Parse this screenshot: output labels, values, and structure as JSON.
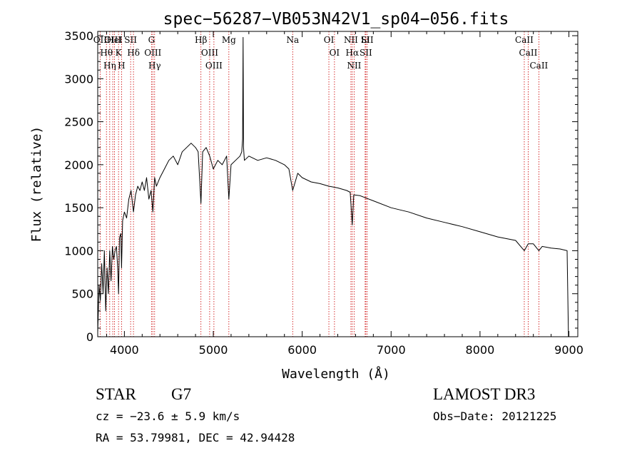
{
  "chart_data": {
    "type": "line",
    "title": "spec−56287−VB053N42V1_sp04−056.fits",
    "xlabel": "Wavelength (Å)",
    "ylabel": "Flux (relative)",
    "xlim": [
      3700,
      9100
    ],
    "ylim": [
      0,
      3550
    ],
    "x_ticks": [
      4000,
      5000,
      6000,
      7000,
      8000,
      9000
    ],
    "y_ticks": [
      0,
      500,
      1000,
      1500,
      2000,
      2500,
      3000,
      3500
    ],
    "grid": false,
    "series": [
      {
        "name": "spectrum",
        "x": [
          3700,
          3715,
          3730,
          3745,
          3760,
          3775,
          3790,
          3805,
          3820,
          3835,
          3850,
          3865,
          3880,
          3895,
          3910,
          3925,
          3934,
          3945,
          3960,
          3968,
          3980,
          4000,
          4025,
          4050,
          4075,
          4102,
          4125,
          4150,
          4175,
          4200,
          4225,
          4250,
          4275,
          4300,
          4320,
          4340,
          4360,
          4380,
          4400,
          4450,
          4500,
          4550,
          4600,
          4650,
          4700,
          4750,
          4800,
          4830,
          4861,
          4880,
          4920,
          4960,
          5000,
          5050,
          5100,
          5150,
          5175,
          5200,
          5250,
          5300,
          5320,
          5330,
          5335,
          5340,
          5350,
          5400,
          5500,
          5600,
          5700,
          5800,
          5850,
          5893,
          5950,
          6000,
          6100,
          6200,
          6300,
          6400,
          6500,
          6540,
          6563,
          6580,
          6650,
          6700,
          6800,
          7000,
          7200,
          7400,
          7600,
          7800,
          8000,
          8200,
          8400,
          8498,
          8542,
          8600,
          8662,
          8700,
          8800,
          8900,
          8980,
          8995
        ],
        "y": [
          50,
          600,
          420,
          850,
          500,
          1000,
          300,
          800,
          500,
          1000,
          650,
          1050,
          900,
          1000,
          1050,
          800,
          500,
          1150,
          1200,
          800,
          1350,
          1450,
          1380,
          1600,
          1700,
          1450,
          1650,
          1750,
          1700,
          1800,
          1700,
          1850,
          1600,
          1700,
          1450,
          1850,
          1750,
          1800,
          1850,
          1950,
          2050,
          2100,
          2000,
          2150,
          2200,
          2250,
          2200,
          2150,
          1550,
          2150,
          2200,
          2100,
          1950,
          2050,
          2000,
          2100,
          1600,
          2000,
          2050,
          2100,
          2150,
          2300,
          3480,
          2200,
          2050,
          2100,
          2050,
          2080,
          2050,
          2000,
          1950,
          1700,
          1900,
          1850,
          1800,
          1780,
          1750,
          1730,
          1700,
          1680,
          1300,
          1650,
          1640,
          1620,
          1580,
          1500,
          1450,
          1380,
          1330,
          1280,
          1220,
          1160,
          1120,
          1000,
          1080,
          1080,
          1000,
          1050,
          1030,
          1020,
          1000,
          0
        ]
      }
    ],
    "lines": [
      {
        "name": "Hθ",
        "x": 3798
      },
      {
        "name": "OII",
        "x": 3727
      },
      {
        "name": "OIII",
        "x": 3869
      },
      {
        "name": "Hη",
        "x": 3835
      },
      {
        "name": "HeI",
        "x": 3889
      },
      {
        "name": "K",
        "x": 3934
      },
      {
        "name": "H",
        "x": 3968
      },
      {
        "name": "SII",
        "x": 4070
      },
      {
        "name": "Hδ",
        "x": 4102
      },
      {
        "name": "OIII",
        "x": 4320
      },
      {
        "name": "Hγ",
        "x": 4340
      },
      {
        "name": "G",
        "x": 4305
      },
      {
        "name": "Hβ",
        "x": 4861
      },
      {
        "name": "OIII",
        "x": 4959
      },
      {
        "name": "OIII",
        "x": 5007
      },
      {
        "name": "Mg",
        "x": 5175
      },
      {
        "name": "Na",
        "x": 5893
      },
      {
        "name": "OI",
        "x": 6300
      },
      {
        "name": "OI",
        "x": 6363
      },
      {
        "name": "Hα",
        "x": 6563
      },
      {
        "name": "NII",
        "x": 6548
      },
      {
        "name": "NII",
        "x": 6584
      },
      {
        "name": "SII",
        "x": 6716
      },
      {
        "name": "SII",
        "x": 6731
      },
      {
        "name": "Li",
        "x": 6708
      },
      {
        "name": "CaII",
        "x": 8498
      },
      {
        "name": "CaII",
        "x": 8542
      },
      {
        "name": "CaII",
        "x": 8662
      }
    ]
  },
  "info": {
    "class": "STAR",
    "subclass": "G7",
    "survey": "LAMOST DR3",
    "cz": "cz = −23.6 ± 5.9 km/s",
    "obs_date": "Obs−Date: 20121225",
    "coords": "RA =  53.79981, DEC =  42.94428"
  },
  "colors": {
    "spectrum": "#000000",
    "line_marker": "#cc0000",
    "axes": "#000000"
  }
}
